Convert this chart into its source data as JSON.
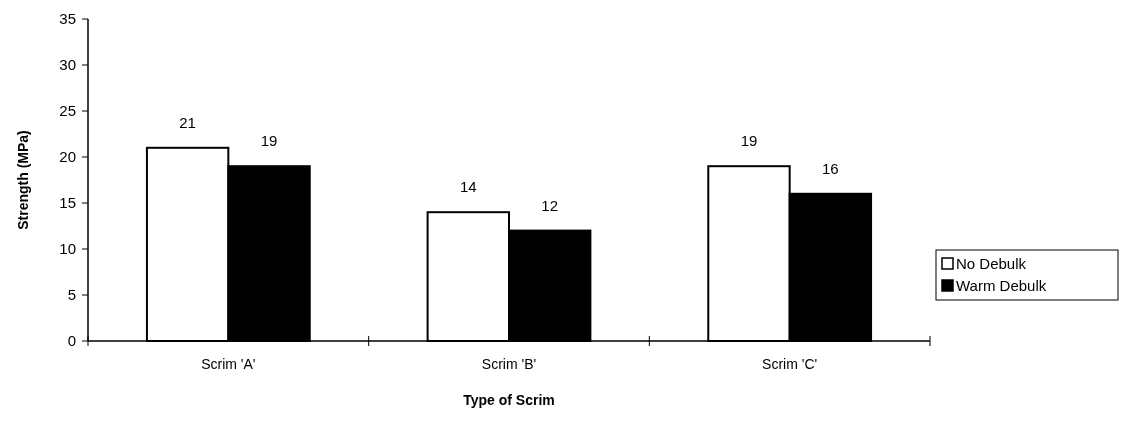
{
  "chart_data": {
    "type": "bar",
    "xlabel": "Type of Scrim",
    "ylabel": "Strength (MPa)",
    "categories": [
      "Scrim 'A'",
      "Scrim 'B'",
      "Scrim 'C'"
    ],
    "series": [
      {
        "name": "No Debulk",
        "color": "#ffffff",
        "values": [
          21,
          14,
          19
        ]
      },
      {
        "name": "Warm Debulk",
        "color": "#000000",
        "values": [
          19,
          12,
          16
        ]
      }
    ],
    "ylim": [
      0,
      35
    ],
    "yticks": [
      0,
      5,
      10,
      15,
      20,
      25,
      30,
      35
    ],
    "data_labels": true,
    "legend": "right",
    "grid": false
  }
}
